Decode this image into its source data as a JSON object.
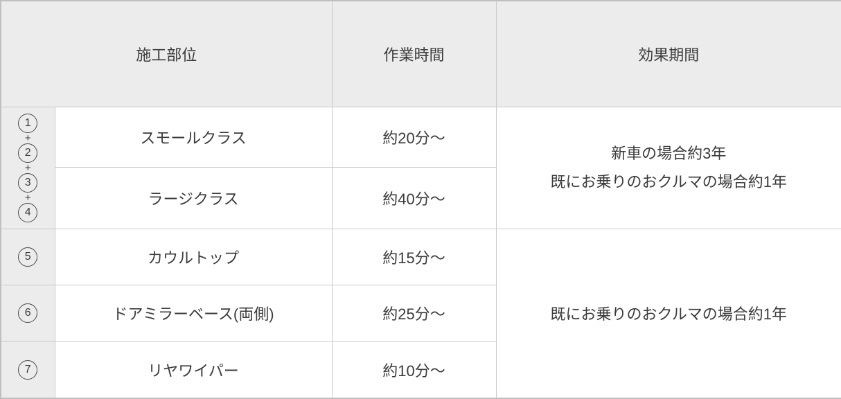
{
  "table": {
    "headers": {
      "part": "施工部位",
      "time": "作業時間",
      "effect": "効果期間"
    },
    "plus_separator": "+",
    "group1": {
      "numbers": [
        "1",
        "2",
        "3",
        "4"
      ],
      "effect_line1": "新車の場合約3年",
      "effect_line2": "既にお乗りのおクルマの場合約1年"
    },
    "group2": {
      "effect": "既にお乗りのおクルマの場合約1年"
    },
    "rows": [
      {
        "number": "",
        "part": "スモールクラス",
        "time": "約20分〜"
      },
      {
        "number": "",
        "part": "ラージクラス",
        "time": "約40分〜"
      },
      {
        "number": "5",
        "part": "カウルトップ",
        "time": "約15分〜"
      },
      {
        "number": "6",
        "part": "ドアミラーベース(両側)",
        "time": "約25分〜"
      },
      {
        "number": "7",
        "part": "リヤワイパー",
        "time": "約10分〜"
      }
    ],
    "colors": {
      "header_bg": "#ececec",
      "number_column_bg": "#ececec",
      "border": "#c9c9c9",
      "outer_border": "#bfbfbf",
      "text": "#3b3b3b",
      "cell_bg": "#ffffff"
    }
  }
}
